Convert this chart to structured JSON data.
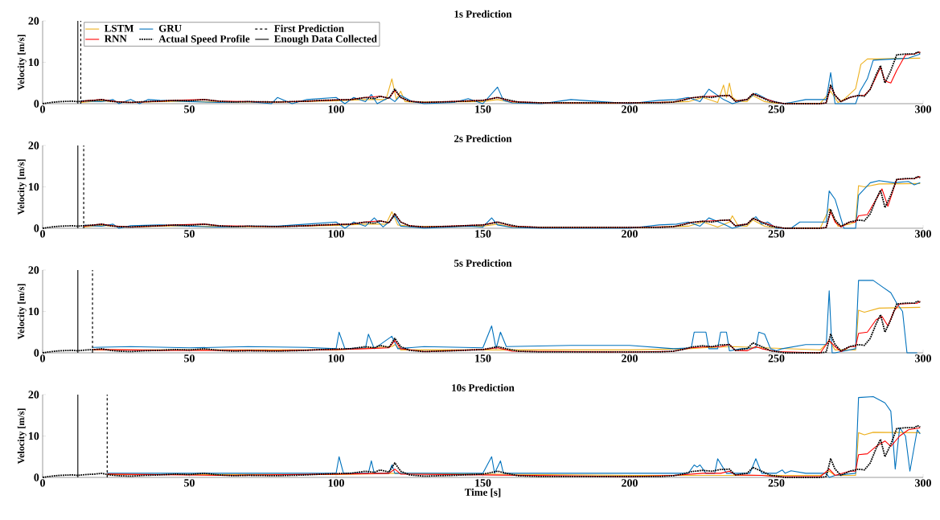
{
  "chart_data": [
    {
      "type": "line",
      "title": "1s Prediction",
      "ylabel": "Velocity [m/s]",
      "xlim": [
        0,
        300
      ],
      "ylim": [
        0,
        20
      ],
      "xticks": [
        0,
        50,
        100,
        150,
        200,
        250,
        300
      ],
      "yticks": [
        0,
        10,
        20
      ],
      "legend": "top left",
      "series": [
        {
          "name": "LSTM",
          "color": "#edb120",
          "line_style": "solid",
          "x": [
            13,
            20,
            30,
            45,
            60,
            80,
            100,
            110,
            117,
            119,
            120.5,
            122,
            123.5,
            126,
            150,
            155,
            160,
            200,
            220,
            225,
            230,
            232,
            233,
            234,
            235,
            237,
            240,
            242,
            246,
            250,
            265,
            268.5,
            271,
            273,
            277,
            278.8,
            281,
            284,
            290,
            299
          ],
          "values": [
            0.3,
            0.7,
            0.3,
            0.6,
            0.4,
            0.4,
            0.7,
            1,
            1,
            6,
            1,
            3,
            0.5,
            0.4,
            0.5,
            1,
            0.3,
            0.1,
            0.5,
            1.5,
            0.3,
            4.5,
            1.5,
            5,
            1.5,
            0.6,
            0.5,
            2,
            0.5,
            0.1,
            0.1,
            3,
            0.3,
            1,
            3.6,
            9.5,
            10.8,
            10.8,
            10.9,
            11
          ]
        },
        {
          "name": "GRU",
          "color": "#0072bd",
          "line_style": "solid",
          "x": [
            13,
            20,
            24,
            26,
            30,
            33,
            36,
            40,
            50,
            60,
            70,
            78,
            80,
            85,
            90,
            100,
            103,
            106,
            110,
            112,
            114,
            118,
            120,
            122,
            126,
            130,
            140,
            145,
            150,
            155,
            157,
            160,
            170,
            180,
            200,
            210,
            216,
            220,
            224,
            227,
            232,
            235,
            240,
            243,
            247,
            252,
            255,
            260,
            267,
            268.5,
            270,
            273,
            277,
            278.5,
            281,
            283,
            290,
            295,
            299
          ],
          "values": [
            0.7,
            0.5,
            1,
            0,
            1,
            0,
            1,
            0.8,
            0.5,
            0.3,
            0.5,
            0,
            1.5,
            0,
            1,
            1.5,
            0,
            1.5,
            0.5,
            2.2,
            0,
            1.5,
            0.5,
            2,
            0.5,
            0,
            0.3,
            1.2,
            0,
            4,
            0.8,
            0.2,
            0,
            1,
            0,
            0.8,
            1,
            1.5,
            0.5,
            3.5,
            1,
            0,
            1,
            2.5,
            1,
            0,
            0.3,
            1,
            1,
            7.5,
            0,
            0,
            0,
            3,
            6,
            10.5,
            10.8,
            11,
            12
          ]
        },
        {
          "name": "First Prediction",
          "color": "#000000",
          "line_style": "dashed",
          "x": [
            13,
            13
          ],
          "values": [
            0,
            20
          ]
        },
        {
          "name": "RNN",
          "color": "#ff0000",
          "line_style": "solid",
          "x": [
            13,
            15,
            20,
            25,
            30,
            40,
            45,
            55,
            60,
            70,
            80,
            90,
            100,
            105,
            110,
            115,
            118,
            120,
            122,
            125,
            130,
            150,
            155,
            160,
            170,
            200,
            215,
            221,
            225,
            231,
            234,
            236,
            240,
            242,
            245,
            250,
            253,
            265,
            267,
            268.5,
            270,
            272,
            275,
            278,
            280,
            282,
            284,
            285.5,
            287,
            289,
            291,
            294,
            297,
            298,
            299
          ],
          "values": [
            0.5,
            0.7,
            1,
            0.5,
            0.3,
            0.6,
            0.8,
            1,
            0.6,
            0.5,
            0.4,
            0.6,
            0.9,
            1,
            1.5,
            1.8,
            1.3,
            3.2,
            1.5,
            0.6,
            0.3,
            0.8,
            1.5,
            0.5,
            0.2,
            0.2,
            0.4,
            1.4,
            1.7,
            1.9,
            2,
            0.6,
            1,
            2.4,
            1.5,
            0.3,
            0,
            0,
            0.2,
            4.2,
            2,
            0.5,
            1.5,
            2,
            2,
            3.5,
            6.5,
            8.8,
            5.5,
            5,
            8,
            11.8,
            12,
            12.3,
            12.5
          ]
        },
        {
          "name": "Actual Speed Profile",
          "color": "#000000",
          "line_style": "dotted",
          "x": [
            0,
            3,
            6,
            10,
            12,
            15,
            18,
            20,
            23,
            26,
            30,
            35,
            40,
            45,
            50,
            55,
            60,
            65,
            70,
            80,
            90,
            95,
            100,
            105,
            108,
            110,
            113,
            115,
            118,
            120,
            122,
            125,
            130,
            140,
            150,
            153,
            155,
            158,
            162,
            170,
            180,
            190,
            200,
            210,
            215,
            218,
            221,
            225,
            228,
            231,
            234,
            236,
            240,
            242,
            245,
            248,
            250,
            253,
            256,
            260,
            265,
            267,
            268.5,
            270,
            272,
            275,
            278,
            280,
            282,
            284,
            285.5,
            287,
            289,
            291,
            294,
            297,
            298,
            299
          ],
          "values": [
            0,
            0.3,
            0.5,
            0.6,
            0.5,
            0.7,
            0.8,
            1,
            0.6,
            0.4,
            0.3,
            0.5,
            0.6,
            0.8,
            0.7,
            1,
            0.6,
            0.4,
            0.5,
            0.4,
            0.6,
            0.8,
            0.9,
            1,
            1.3,
            1.5,
            1.2,
            1.8,
            1.3,
            3.5,
            1.5,
            0.6,
            0.3,
            0.5,
            0.8,
            1.2,
            1.5,
            1,
            0.4,
            0.2,
            0.2,
            0.2,
            0.2,
            0.2,
            0.4,
            0.8,
            1.4,
            1.7,
            1.5,
            1.9,
            2,
            0.6,
            1,
            2.4,
            1.5,
            0.5,
            0.3,
            0,
            0,
            0,
            0,
            0.2,
            4.5,
            2,
            0.5,
            1.5,
            2,
            1.8,
            3.5,
            7,
            9.2,
            5,
            8,
            11.8,
            12,
            12,
            12.5,
            12.2
          ]
        },
        {
          "name": "Enough Data Collected",
          "color": "#000000",
          "line_style": "solid",
          "x": [
            12,
            12
          ],
          "values": [
            0,
            20
          ]
        }
      ]
    },
    {
      "type": "line",
      "title": "2s Prediction",
      "ylabel": "Velocity [m/s]",
      "xlim": [
        0,
        300
      ],
      "ylim": [
        0,
        20
      ],
      "xticks": [
        0,
        50,
        100,
        150,
        200,
        250,
        300
      ],
      "yticks": [
        0,
        10,
        20
      ],
      "series": [
        {
          "color": "#edb120",
          "line_style": "solid",
          "x": [
            14,
            20,
            30,
            45,
            60,
            80,
            100,
            110,
            117,
            119,
            121,
            126,
            150,
            155,
            160,
            200,
            220,
            225,
            230,
            234,
            235,
            237,
            240,
            242,
            246,
            250,
            265,
            268,
            271,
            275,
            277,
            278,
            280,
            285,
            299
          ],
          "values": [
            0.3,
            0.7,
            0.3,
            0.6,
            0.4,
            0.4,
            0.7,
            1,
            1,
            4,
            0.8,
            0.4,
            0.5,
            1,
            0.3,
            0.1,
            0.5,
            1.5,
            0.3,
            1.5,
            3,
            0.6,
            0.5,
            2,
            0.5,
            0.1,
            0.1,
            4.7,
            0.5,
            1,
            1.5,
            10.3,
            10,
            10.7,
            10.8
          ]
        },
        {
          "color": "#0072bd",
          "line_style": "solid",
          "x": [
            14,
            20,
            24,
            26,
            30,
            40,
            50,
            60,
            70,
            80,
            90,
            100,
            103,
            106,
            110,
            113,
            116,
            118,
            120,
            122,
            126,
            130,
            145,
            150,
            153,
            155,
            160,
            170,
            200,
            210,
            216,
            220,
            224,
            227,
            232,
            235,
            240,
            243,
            245,
            247,
            250,
            255,
            258,
            267,
            268,
            270,
            273,
            277,
            278,
            282,
            285,
            290,
            295,
            297,
            299
          ],
          "values": [
            0.7,
            0.5,
            1,
            0,
            0.6,
            0.8,
            0.5,
            0.3,
            0.5,
            0.5,
            1,
            1.5,
            0,
            1.5,
            0.5,
            2.5,
            0.3,
            1.5,
            3,
            0.5,
            0.3,
            0,
            0.5,
            0.3,
            2.5,
            0.8,
            0.2,
            0,
            0,
            0.8,
            1,
            1.5,
            0.5,
            2.5,
            1,
            0,
            1,
            2.8,
            1,
            1.5,
            0,
            0,
            1.5,
            1.5,
            9,
            7,
            0,
            0,
            8,
            11,
            11.5,
            11,
            11.3,
            10.5,
            11
          ]
        },
        {
          "color": "#000000",
          "line_style": "dashed",
          "x": [
            14,
            14
          ],
          "values": [
            0,
            20
          ]
        },
        {
          "color": "#ff0000",
          "line_style": "solid",
          "x": [
            14,
            20,
            25,
            30,
            40,
            45,
            55,
            60,
            70,
            80,
            90,
            100,
            105,
            110,
            115,
            118,
            120,
            122,
            125,
            130,
            150,
            155,
            160,
            170,
            200,
            215,
            221,
            225,
            231,
            234,
            236,
            240,
            242,
            245,
            250,
            253,
            265,
            267,
            268.5,
            270,
            272,
            275,
            277,
            278,
            281,
            284,
            286,
            288,
            291,
            297,
            299
          ],
          "values": [
            0.5,
            1,
            0.5,
            0.3,
            0.6,
            0.8,
            1,
            0.6,
            0.5,
            0.4,
            0.6,
            0.9,
            1,
            1.5,
            1.8,
            1.3,
            3.5,
            1.5,
            0.6,
            0.3,
            0.8,
            1.5,
            0.5,
            0.2,
            0.2,
            0.4,
            1.4,
            1.7,
            1.9,
            2,
            0.6,
            1,
            2.4,
            1.5,
            0.3,
            0,
            0,
            0.2,
            4,
            1.5,
            0.3,
            1.5,
            1.5,
            3,
            3.3,
            7,
            9.5,
            5.3,
            11.8,
            12,
            12.5
          ]
        },
        {
          "color": "#000000",
          "line_style": "dotted",
          "x": [
            0,
            3,
            6,
            10,
            12,
            15,
            18,
            20,
            23,
            26,
            30,
            35,
            40,
            45,
            50,
            55,
            60,
            65,
            70,
            80,
            90,
            95,
            100,
            105,
            108,
            110,
            113,
            115,
            118,
            120,
            122,
            125,
            130,
            140,
            150,
            153,
            155,
            158,
            162,
            170,
            180,
            190,
            200,
            210,
            215,
            218,
            221,
            225,
            228,
            231,
            234,
            236,
            240,
            242,
            245,
            248,
            250,
            253,
            256,
            260,
            265,
            267,
            268.5,
            270,
            272,
            275,
            278,
            280,
            282,
            284,
            285.5,
            287,
            289,
            291,
            294,
            297,
            298,
            299
          ],
          "values": [
            0,
            0.3,
            0.5,
            0.6,
            0.5,
            0.7,
            0.8,
            1,
            0.6,
            0.4,
            0.3,
            0.5,
            0.6,
            0.8,
            0.7,
            1,
            0.6,
            0.4,
            0.5,
            0.4,
            0.6,
            0.8,
            0.9,
            1,
            1.3,
            1.5,
            1.2,
            1.8,
            1.3,
            3.5,
            1.5,
            0.6,
            0.3,
            0.5,
            0.8,
            1.2,
            1.5,
            1,
            0.4,
            0.2,
            0.2,
            0.2,
            0.2,
            0.2,
            0.4,
            0.8,
            1.4,
            1.7,
            1.5,
            1.9,
            2,
            0.6,
            1,
            2.4,
            1.5,
            0.5,
            0.3,
            0,
            0,
            0,
            0,
            0.2,
            4.5,
            2,
            0.5,
            1.5,
            2,
            1.8,
            3.5,
            7,
            9.2,
            5,
            8,
            11.8,
            12,
            12,
            12.5,
            12.2
          ]
        },
        {
          "color": "#000000",
          "line_style": "solid",
          "x": [
            12,
            12
          ],
          "values": [
            0,
            20
          ]
        }
      ]
    },
    {
      "type": "line",
      "title": "5s Prediction",
      "ylabel": "Velocity [m/s]",
      "xlim": [
        0,
        300
      ],
      "ylim": [
        0,
        20
      ],
      "xticks": [
        0,
        50,
        100,
        150,
        200,
        250,
        300
      ],
      "yticks": [
        0,
        10,
        20
      ],
      "series": [
        {
          "color": "#edb120",
          "line_style": "solid",
          "x": [
            17,
            100,
            119,
            120,
            122,
            200,
            220,
            225,
            235,
            265,
            268,
            270,
            277,
            278,
            280,
            285,
            299
          ],
          "values": [
            0.7,
            0.7,
            1.5,
            2,
            0.7,
            0.7,
            1,
            1.2,
            1.5,
            0.7,
            3,
            0.7,
            0.7,
            10.3,
            9.8,
            10.8,
            11
          ]
        },
        {
          "color": "#0072bd",
          "line_style": "solid",
          "x": [
            17,
            30,
            50,
            70,
            90,
            100,
            101,
            103,
            110,
            111,
            113,
            119,
            121,
            130,
            150,
            153,
            154.5,
            156,
            158,
            180,
            200,
            215,
            221,
            222,
            226,
            227,
            230,
            231,
            233,
            234,
            238,
            243,
            244,
            246,
            248,
            250,
            252,
            260,
            267,
            268,
            269,
            270,
            272,
            277,
            278,
            283,
            286,
            289,
            291,
            293,
            294.5,
            296,
            298
          ],
          "values": [
            1.3,
            1.5,
            1.2,
            1.5,
            1.3,
            1,
            5,
            1,
            1.2,
            4.5,
            1,
            4,
            1,
            1.5,
            1.2,
            6.5,
            1,
            5,
            1.5,
            1.8,
            1.8,
            1,
            1.2,
            5,
            5,
            1,
            1,
            5,
            5,
            0.5,
            1,
            1.2,
            5,
            4.5,
            1,
            0.5,
            1,
            2,
            2,
            15,
            0,
            0,
            0.3,
            1,
            17.5,
            17.5,
            16,
            14.5,
            12,
            10,
            0,
            0,
            0
          ]
        },
        {
          "color": "#000000",
          "line_style": "dashed",
          "x": [
            17,
            17
          ],
          "values": [
            0,
            20
          ]
        },
        {
          "color": "#ff0000",
          "line_style": "solid",
          "x": [
            17,
            40,
            60,
            80,
            100,
            110,
            118,
            120,
            122,
            130,
            150,
            155,
            160,
            200,
            215,
            221,
            225,
            231,
            234,
            236,
            240,
            243,
            245,
            250,
            265,
            268,
            270,
            272,
            275,
            277,
            278,
            281,
            284,
            286,
            288,
            290,
            292,
            298,
            299
          ],
          "values": [
            0.8,
            0.6,
            0.6,
            0.5,
            0.8,
            1,
            1.2,
            3,
            1,
            0.3,
            0.8,
            1.2,
            0.4,
            0.2,
            0.4,
            1.2,
            1.4,
            1.5,
            2,
            0.6,
            0.5,
            1.5,
            1,
            0.3,
            0,
            3,
            1.5,
            0.3,
            1.5,
            1.5,
            4.7,
            5,
            8,
            8.8,
            6.5,
            10,
            11.8,
            12,
            12.5
          ]
        },
        {
          "color": "#000000",
          "line_style": "dotted",
          "x": [
            0,
            3,
            6,
            10,
            12,
            15,
            18,
            20,
            23,
            26,
            30,
            35,
            40,
            45,
            50,
            55,
            60,
            65,
            70,
            80,
            90,
            95,
            100,
            105,
            108,
            110,
            113,
            115,
            118,
            120,
            122,
            125,
            130,
            140,
            150,
            153,
            155,
            158,
            162,
            170,
            180,
            190,
            200,
            210,
            215,
            218,
            221,
            225,
            228,
            231,
            234,
            236,
            240,
            242,
            245,
            248,
            250,
            253,
            256,
            260,
            265,
            267,
            268.5,
            270,
            272,
            275,
            278,
            280,
            282,
            284,
            285.5,
            287,
            289,
            291,
            294,
            297,
            298,
            299
          ],
          "values": [
            0,
            0.3,
            0.5,
            0.6,
            0.5,
            0.7,
            0.8,
            1,
            0.6,
            0.4,
            0.3,
            0.5,
            0.6,
            0.8,
            0.7,
            1,
            0.6,
            0.4,
            0.5,
            0.4,
            0.6,
            0.8,
            0.9,
            1,
            1.3,
            1.5,
            1.2,
            1.8,
            1.3,
            3.5,
            1.5,
            0.6,
            0.3,
            0.5,
            0.8,
            1.2,
            1.5,
            1,
            0.4,
            0.2,
            0.2,
            0.2,
            0.2,
            0.2,
            0.4,
            0.8,
            1.4,
            1.7,
            1.5,
            1.9,
            2,
            0.6,
            1,
            2.4,
            1.5,
            0.5,
            0.3,
            0,
            0,
            0,
            0,
            0.2,
            4.5,
            2,
            0.5,
            1.5,
            2,
            1.8,
            3.5,
            7,
            9.2,
            5,
            8,
            11.8,
            12,
            12,
            12.5,
            12.2
          ]
        },
        {
          "color": "#000000",
          "line_style": "solid",
          "x": [
            12,
            12
          ],
          "values": [
            0,
            20
          ]
        }
      ]
    },
    {
      "type": "line",
      "title": "10s Prediction",
      "xlabel": "Time [s]",
      "ylabel": "Velocity [m/s]",
      "xlim": [
        0,
        300
      ],
      "ylim": [
        0,
        20
      ],
      "xticks": [
        0,
        50,
        100,
        150,
        200,
        250,
        300
      ],
      "yticks": [
        0,
        10,
        20
      ],
      "series": [
        {
          "color": "#edb120",
          "line_style": "solid",
          "x": [
            22,
            100,
            120,
            200,
            265,
            268,
            270,
            277,
            278,
            280,
            283,
            299
          ],
          "values": [
            0.7,
            0.7,
            1,
            0.5,
            0.5,
            1.5,
            0.5,
            0.5,
            10.8,
            10.3,
            10.9,
            10.8
          ]
        },
        {
          "color": "#0072bd",
          "line_style": "solid",
          "x": [
            22,
            100,
            101,
            102.5,
            111,
            112,
            113,
            118,
            119,
            120,
            150,
            153,
            154,
            156,
            157,
            200,
            220,
            222,
            223,
            224,
            226,
            229,
            230,
            233,
            241,
            243,
            245,
            247,
            250,
            252,
            253,
            255,
            260,
            267,
            268,
            270,
            277,
            278,
            283,
            287,
            289,
            290.5,
            292,
            294,
            295.5,
            298,
            299
          ],
          "values": [
            1,
            1,
            5,
            1,
            1,
            4,
            1,
            1,
            3,
            1,
            1,
            5,
            1,
            4,
            1,
            1,
            1,
            3,
            2.5,
            3,
            1,
            1,
            4.5,
            1,
            1,
            4.5,
            1,
            1,
            1,
            1.8,
            1,
            1.6,
            1,
            1,
            0,
            0.5,
            1,
            19.3,
            19.5,
            18,
            16,
            2,
            12,
            10,
            1.5,
            11.5,
            10.5
          ]
        },
        {
          "color": "#000000",
          "line_style": "dashed",
          "x": [
            22,
            22
          ],
          "values": [
            0,
            20
          ]
        },
        {
          "color": "#ff0000",
          "line_style": "solid",
          "x": [
            22,
            60,
            100,
            118,
            120,
            122,
            150,
            200,
            215,
            225,
            231,
            234,
            236,
            245,
            250,
            265,
            268,
            270,
            275,
            277,
            278,
            281,
            284,
            287,
            289,
            292,
            295,
            299
          ],
          "values": [
            0.8,
            0.5,
            0.8,
            1,
            2,
            0.8,
            0.6,
            0.2,
            0.5,
            1,
            1,
            1.5,
            0.6,
            0.5,
            0.2,
            0.2,
            2,
            0.5,
            1.5,
            1.5,
            5.5,
            5.7,
            7.5,
            8.8,
            7.5,
            10,
            11.5,
            12
          ]
        },
        {
          "color": "#000000",
          "line_style": "dotted",
          "x": [
            0,
            3,
            6,
            10,
            12,
            15,
            18,
            20,
            23,
            26,
            30,
            35,
            40,
            45,
            50,
            55,
            60,
            65,
            70,
            80,
            90,
            95,
            100,
            105,
            108,
            110,
            113,
            115,
            118,
            120,
            122,
            125,
            130,
            140,
            150,
            153,
            155,
            158,
            162,
            170,
            180,
            190,
            200,
            210,
            215,
            218,
            221,
            225,
            228,
            231,
            234,
            236,
            240,
            242,
            245,
            248,
            250,
            253,
            256,
            260,
            265,
            267,
            268.5,
            270,
            272,
            275,
            278,
            280,
            282,
            284,
            285.5,
            287,
            289,
            291,
            294,
            297,
            298,
            299
          ],
          "values": [
            0,
            0.3,
            0.5,
            0.6,
            0.5,
            0.7,
            0.8,
            1,
            0.6,
            0.4,
            0.3,
            0.5,
            0.6,
            0.8,
            0.7,
            1,
            0.6,
            0.4,
            0.5,
            0.4,
            0.6,
            0.8,
            0.9,
            1,
            1.3,
            1.5,
            1.2,
            1.8,
            1.3,
            3.5,
            1.5,
            0.6,
            0.3,
            0.5,
            0.8,
            1.2,
            1.5,
            1,
            0.4,
            0.2,
            0.2,
            0.2,
            0.2,
            0.2,
            0.4,
            0.8,
            1.4,
            1.7,
            1.5,
            1.9,
            2,
            0.6,
            1,
            2.4,
            1.5,
            0.5,
            0.3,
            0,
            0,
            0,
            0,
            0.2,
            4.5,
            2,
            0.5,
            1.5,
            2,
            1.8,
            3.5,
            7,
            9.2,
            5,
            8,
            11.8,
            12,
            12,
            12.5,
            12.2
          ]
        },
        {
          "color": "#000000",
          "line_style": "solid",
          "x": [
            12,
            12
          ],
          "values": [
            0,
            20
          ]
        }
      ]
    }
  ]
}
